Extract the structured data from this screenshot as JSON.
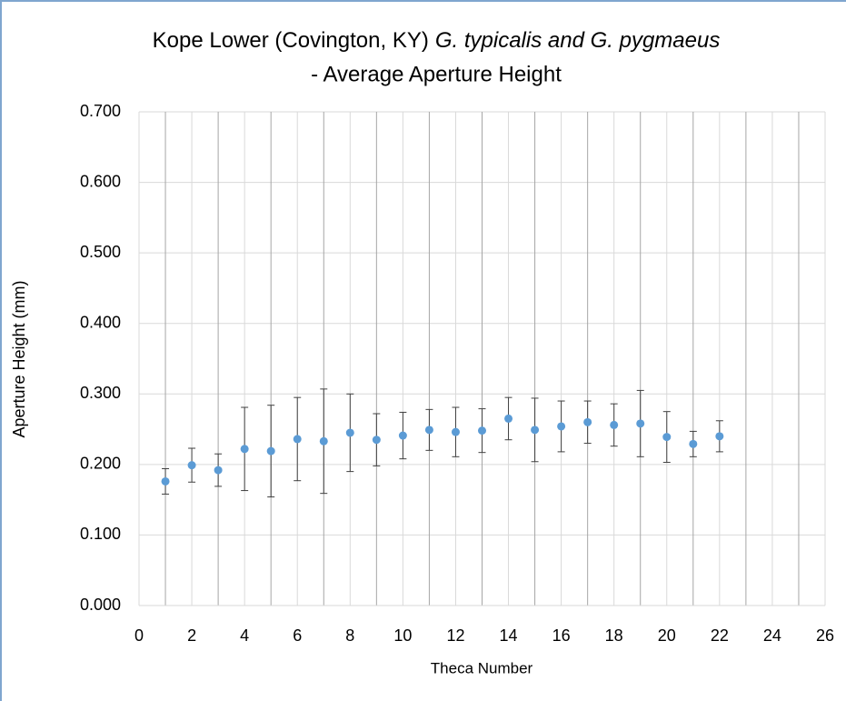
{
  "chart_data": {
    "type": "scatter",
    "title": {
      "plain": "Kope Lower (Covington, KY)",
      "italic": "G. typicalis and G. pygmaeus",
      "line2": "- Average Aperture Height"
    },
    "xlabel": "Theca Number",
    "ylabel": "Aperture Height  (mm)",
    "series": [
      {
        "color": "#5b9bd5",
        "x": [
          1,
          2,
          3,
          4,
          5,
          6,
          7,
          8,
          9,
          10,
          11,
          12,
          13,
          14,
          15,
          16,
          17,
          18,
          19,
          20,
          21,
          22
        ],
        "y": [
          0.176,
          0.199,
          0.192,
          0.222,
          0.219,
          0.236,
          0.233,
          0.245,
          0.235,
          0.241,
          0.249,
          0.246,
          0.248,
          0.265,
          0.249,
          0.254,
          0.26,
          0.256,
          0.258,
          0.239,
          0.229,
          0.24
        ],
        "err": [
          0.018,
          0.024,
          0.023,
          0.059,
          0.065,
          0.059,
          0.074,
          0.055,
          0.037,
          0.033,
          0.029,
          0.035,
          0.031,
          0.03,
          0.045,
          0.036,
          0.03,
          0.03,
          0.047,
          0.036,
          0.018,
          0.022
        ]
      }
    ],
    "xlim": [
      0,
      26
    ],
    "xticks": [
      0,
      2,
      4,
      6,
      8,
      10,
      12,
      14,
      16,
      18,
      20,
      22,
      24,
      26
    ],
    "ylim": [
      0,
      0.7
    ],
    "yticks": [
      {
        "value": 0,
        "label": "0.000"
      },
      {
        "value": 0.1,
        "label": "0.100"
      },
      {
        "value": 0.2,
        "label": "0.200"
      },
      {
        "value": 0.3,
        "label": "0.300"
      },
      {
        "value": 0.4,
        "label": "0.400"
      },
      {
        "value": 0.5,
        "label": "0.500"
      },
      {
        "value": 0.6,
        "label": "0.600"
      },
      {
        "value": 0.7,
        "label": "0.700"
      }
    ],
    "grid": true
  }
}
